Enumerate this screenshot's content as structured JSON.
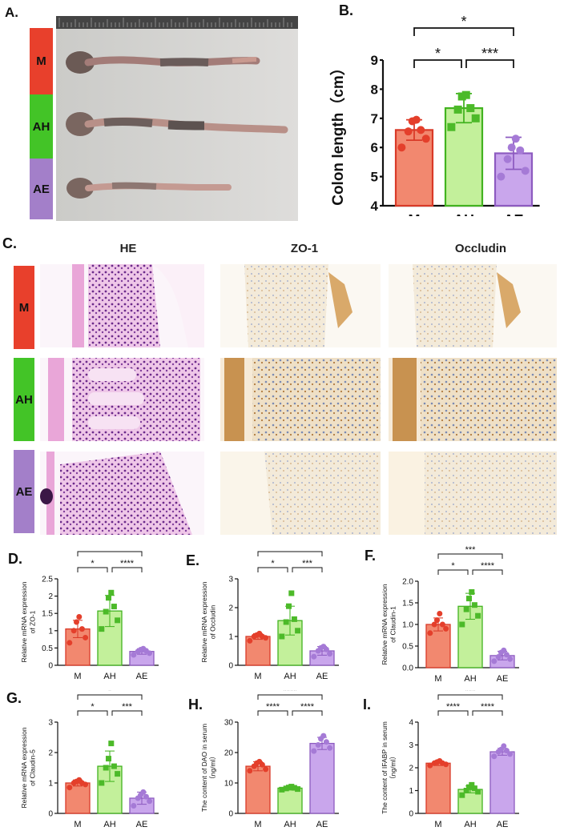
{
  "colors": {
    "M": "#e8402c",
    "AH": "#43c427",
    "AE": "#a37fc9",
    "M_bar": "#f2886f",
    "AH_bar": "#c3f09b",
    "AE_bar": "#c9a6ec",
    "M_line": "#d93a28",
    "AH_line": "#42b320",
    "AE_line": "#8d5bc0",
    "M_dot": "#e43f2b",
    "AH_dot": "#4cba29",
    "AE_dot": "#a57ad6"
  },
  "panels": {
    "A": {
      "letter": "A."
    },
    "B": {
      "letter": "B."
    },
    "C": {
      "letter": "C."
    },
    "D": {
      "letter": "D."
    },
    "E": {
      "letter": "E."
    },
    "F": {
      "letter": "F."
    },
    "G": {
      "letter": "G."
    },
    "H": {
      "letter": "H."
    },
    "I": {
      "letter": "I."
    }
  },
  "groups": [
    "M",
    "AH",
    "AE"
  ],
  "panelC": {
    "columns": [
      "HE",
      "ZO-1",
      "Occludin"
    ]
  },
  "chart_data": [
    {
      "panel": "B",
      "type": "bar",
      "categories": [
        "M",
        "AH",
        "AE"
      ],
      "values": [
        6.6,
        7.35,
        5.8
      ],
      "errors": [
        0.35,
        0.5,
        0.55
      ],
      "points": [
        [
          6.0,
          6.3,
          6.55,
          6.6,
          6.9,
          6.95
        ],
        [
          6.7,
          7.0,
          7.3,
          7.35,
          7.75,
          7.8
        ],
        [
          5.0,
          5.2,
          5.6,
          5.9,
          6.0,
          6.3
        ]
      ],
      "ylabel": "Colon length（cm）",
      "ylim": [
        4,
        9
      ],
      "yticks": [
        4,
        5,
        6,
        7,
        8,
        9
      ],
      "brackets": [
        {
          "from": 0,
          "to": 2,
          "label": "*"
        },
        {
          "from": 0,
          "to": 1,
          "label": "*"
        },
        {
          "from": 1,
          "to": 2,
          "label": "***"
        }
      ]
    },
    {
      "panel": "D",
      "type": "bar",
      "categories": [
        "M",
        "AH",
        "AE"
      ],
      "values": [
        1.05,
        1.57,
        0.4
      ],
      "errors": [
        0.25,
        0.45,
        0.08
      ],
      "points": [
        [
          0.65,
          0.8,
          1.0,
          1.05,
          1.25,
          1.4
        ],
        [
          1.05,
          1.3,
          1.55,
          1.7,
          1.95,
          2.1
        ],
        [
          0.3,
          0.35,
          0.4,
          0.42,
          0.45,
          0.48
        ]
      ],
      "ylabel": "Relative mRNA expression of ZO-1",
      "ylim": [
        0,
        2.5
      ],
      "yticks": [
        0,
        0.5,
        1,
        1.5,
        2,
        2.5
      ],
      "brackets": [
        {
          "from": 0,
          "to": 2,
          "label": "**"
        },
        {
          "from": 0,
          "to": 1,
          "label": "*"
        },
        {
          "from": 1,
          "to": 2,
          "label": "****"
        }
      ]
    },
    {
      "panel": "E",
      "type": "bar",
      "categories": [
        "M",
        "AH",
        "AE"
      ],
      "values": [
        1.0,
        1.55,
        0.5
      ],
      "errors": [
        0.1,
        0.5,
        0.15
      ],
      "points": [
        [
          0.85,
          0.95,
          1.0,
          1.0,
          1.05,
          1.1
        ],
        [
          1.0,
          1.2,
          1.5,
          1.6,
          2.05,
          2.5
        ],
        [
          0.3,
          0.4,
          0.5,
          0.55,
          0.6,
          0.65
        ]
      ],
      "ylabel": "Relative mRNA expression of Occludin",
      "ylim": [
        0,
        3
      ],
      "yticks": [
        0,
        1,
        2,
        3
      ],
      "brackets": [
        {
          "from": 0,
          "to": 2,
          "label": "*"
        },
        {
          "from": 0,
          "to": 1,
          "label": "*"
        },
        {
          "from": 1,
          "to": 2,
          "label": "***"
        }
      ]
    },
    {
      "panel": "F",
      "type": "bar",
      "categories": [
        "M",
        "AH",
        "AE"
      ],
      "values": [
        1.0,
        1.42,
        0.28
      ],
      "errors": [
        0.15,
        0.3,
        0.1
      ],
      "points": [
        [
          0.8,
          0.9,
          1.0,
          1.0,
          1.1,
          1.25
        ],
        [
          1.0,
          1.2,
          1.35,
          1.45,
          1.6,
          1.75
        ],
        [
          0.15,
          0.2,
          0.25,
          0.3,
          0.35,
          0.4
        ]
      ],
      "ylabel": "Relative mRNA expression of Claudin-1",
      "ylim": [
        0,
        2.0
      ],
      "yticks": [
        0,
        0.5,
        1.0,
        1.5,
        2.0
      ],
      "tickfmt": "fixed1",
      "brackets": [
        {
          "from": 0,
          "to": 2,
          "label": "***"
        },
        {
          "from": 0,
          "to": 1,
          "label": "*"
        },
        {
          "from": 1,
          "to": 2,
          "label": "****"
        }
      ]
    },
    {
      "panel": "G",
      "type": "bar",
      "categories": [
        "M",
        "AH",
        "AE"
      ],
      "values": [
        1.0,
        1.55,
        0.5
      ],
      "errors": [
        0.1,
        0.5,
        0.2
      ],
      "points": [
        [
          0.85,
          0.95,
          1.0,
          1.0,
          1.05,
          1.1
        ],
        [
          1.0,
          1.3,
          1.5,
          1.55,
          1.8,
          2.3
        ],
        [
          0.25,
          0.4,
          0.5,
          0.55,
          0.6,
          0.7
        ]
      ],
      "ylabel": "Relative mRNA expression of Claudin-5",
      "ylim": [
        0,
        3
      ],
      "yticks": [
        0,
        1,
        2,
        3
      ],
      "brackets": [
        {
          "from": 0,
          "to": 2,
          "label": "*"
        },
        {
          "from": 0,
          "to": 1,
          "label": "*"
        },
        {
          "from": 1,
          "to": 2,
          "label": "***"
        }
      ]
    },
    {
      "panel": "H",
      "type": "bar",
      "categories": [
        "M",
        "AH",
        "AE"
      ],
      "values": [
        15.5,
        8.3,
        23.0
      ],
      "errors": [
        1.5,
        0.6,
        2.0
      ],
      "points": [
        [
          14.0,
          14.5,
          15.5,
          16.0,
          16.5,
          17.0
        ],
        [
          7.8,
          8.0,
          8.2,
          8.4,
          8.5,
          8.8
        ],
        [
          20.5,
          21.5,
          22.5,
          23.5,
          24.5,
          25.5
        ]
      ],
      "ylabel": "The content of DAO in serum（ng/ml）",
      "ylim": [
        0,
        30
      ],
      "yticks": [
        0,
        10,
        20,
        30
      ],
      "brackets": [
        {
          "from": 0,
          "to": 2,
          "label": "****"
        },
        {
          "from": 0,
          "to": 1,
          "label": "****"
        },
        {
          "from": 1,
          "to": 2,
          "label": "****"
        }
      ]
    },
    {
      "panel": "I",
      "type": "bar",
      "categories": [
        "M",
        "AH",
        "AE"
      ],
      "values": [
        2.2,
        1.05,
        2.7
      ],
      "errors": [
        0.1,
        0.15,
        0.15
      ],
      "points": [
        [
          2.1,
          2.15,
          2.2,
          2.2,
          2.25,
          2.3
        ],
        [
          0.8,
          0.95,
          1.0,
          1.1,
          1.15,
          1.25
        ],
        [
          2.5,
          2.6,
          2.7,
          2.75,
          2.8,
          2.95
        ]
      ],
      "ylabel": "The content of IFABP in serum（ng/ml）",
      "ylim": [
        0,
        4
      ],
      "yticks": [
        0,
        1,
        2,
        3,
        4
      ],
      "brackets": [
        {
          "from": 0,
          "to": 2,
          "label": "***"
        },
        {
          "from": 0,
          "to": 1,
          "label": "****"
        },
        {
          "from": 1,
          "to": 2,
          "label": "****"
        }
      ]
    }
  ]
}
